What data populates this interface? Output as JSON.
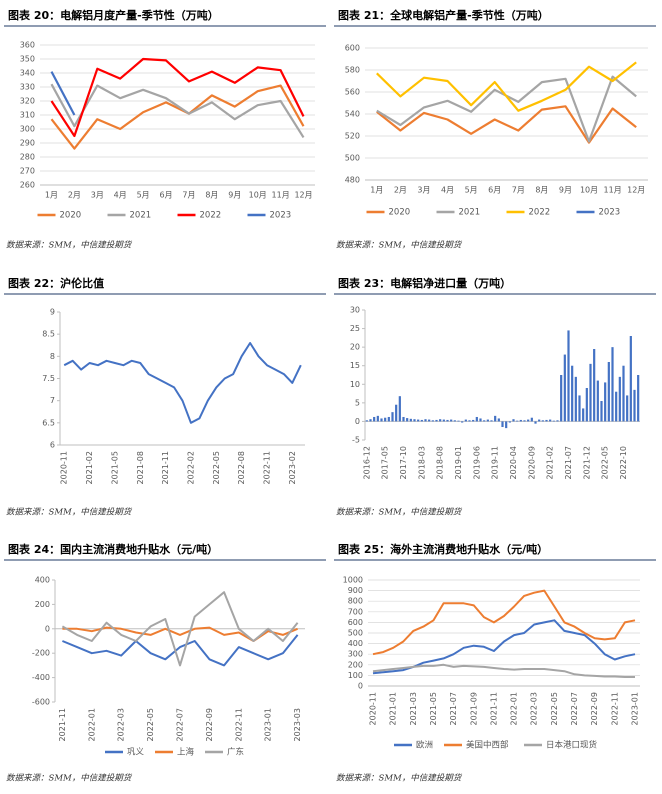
{
  "chart_data": [
    {
      "type": "line",
      "title": "图表 20：电解铝月度产量-季节性（万吨）",
      "source": "数据来源：SMM，中信建投期货",
      "categories": [
        "1月",
        "2月",
        "3月",
        "4月",
        "5月",
        "6月",
        "7月",
        "8月",
        "9月",
        "10月",
        "11月",
        "12月"
      ],
      "series": [
        {
          "name": "2020",
          "color": "#ed7d31",
          "values": [
            307,
            286,
            307,
            300,
            312,
            319,
            311,
            324,
            316,
            327,
            331,
            302
          ]
        },
        {
          "name": "2021",
          "color": "#a5a5a5",
          "values": [
            332,
            302,
            331,
            322,
            328,
            322,
            311,
            319,
            307,
            317,
            320,
            294
          ]
        },
        {
          "name": "2022",
          "color": "#ff0000",
          "values": [
            320,
            295,
            343,
            336,
            350,
            349,
            334,
            341,
            333,
            344,
            342,
            309
          ]
        },
        {
          "name": "2023",
          "color": "#4472c4",
          "values": [
            341,
            310,
            null,
            null,
            null,
            null,
            null,
            null,
            null,
            null,
            null,
            null
          ]
        }
      ],
      "ylim": [
        260,
        360
      ],
      "yticks": [
        260,
        270,
        280,
        290,
        300,
        310,
        320,
        330,
        340,
        350,
        360
      ],
      "grid": true
    },
    {
      "type": "line",
      "title": "图表 21：全球电解铝产量-季节性（万吨）",
      "source": "数据来源：SMM，中信建投期货",
      "categories": [
        "1月",
        "2月",
        "3月",
        "4月",
        "5月",
        "6月",
        "7月",
        "8月",
        "9月",
        "10月",
        "11月",
        "12月"
      ],
      "series": [
        {
          "name": "2020",
          "color": "#ed7d31",
          "values": [
            542,
            525,
            541,
            535,
            522,
            535,
            525,
            544,
            547,
            514,
            545,
            528
          ]
        },
        {
          "name": "2021",
          "color": "#a5a5a5",
          "values": [
            543,
            530,
            546,
            552,
            542,
            562,
            551,
            569,
            572,
            515,
            574,
            556
          ]
        },
        {
          "name": "2022",
          "color": "#ffc000",
          "values": [
            577,
            556,
            573,
            570,
            548,
            569,
            543,
            552,
            562,
            583,
            570,
            587
          ]
        },
        {
          "name": "2023",
          "color": "#4472c4",
          "values": [
            null,
            null,
            null,
            null,
            null,
            null,
            null,
            null,
            null,
            null,
            null,
            null
          ]
        }
      ],
      "ylim": [
        480,
        600
      ],
      "yticks": [
        480,
        500,
        520,
        540,
        560,
        580,
        600
      ],
      "grid": true
    },
    {
      "type": "line",
      "title": "图表 22：沪伦比值",
      "source": "数据来源：SMM，中信建投期货",
      "categories": [
        "2020-11",
        null,
        null,
        "2021-02",
        null,
        null,
        "2021-05",
        null,
        null,
        "2021-08",
        null,
        null,
        "2021-11",
        null,
        null,
        "2022-02",
        null,
        null,
        "2022-05",
        null,
        null,
        "2022-08",
        null,
        null,
        "2022-11",
        null,
        null,
        "2023-02",
        null
      ],
      "values": [
        7.8,
        7.9,
        7.7,
        7.85,
        7.8,
        7.9,
        7.85,
        7.8,
        7.9,
        7.85,
        7.6,
        7.5,
        7.4,
        7.3,
        7.0,
        6.5,
        6.6,
        7.0,
        7.3,
        7.5,
        7.6,
        8.0,
        8.3,
        8.0,
        7.8,
        7.7,
        7.6,
        7.4,
        7.8
      ],
      "color": "#4472c4",
      "ylim": [
        6,
        9
      ],
      "yticks": [
        6,
        6.5,
        7,
        7.5,
        8,
        8.5,
        9
      ],
      "grid": false
    },
    {
      "type": "bar",
      "title": "图表 23：电解铝净进口量（万吨）",
      "source": "数据来源：SMM，中信建投期货",
      "categories": [
        "2016-12",
        null,
        null,
        null,
        null,
        "2017-05",
        null,
        null,
        null,
        null,
        "2017-10",
        null,
        null,
        null,
        null,
        "2018-03",
        null,
        null,
        null,
        null,
        "2018-08",
        null,
        null,
        null,
        null,
        "2019-01",
        null,
        null,
        null,
        null,
        "2019-06",
        null,
        null,
        null,
        null,
        "2019-11",
        null,
        null,
        null,
        null,
        "2020-04",
        null,
        null,
        null,
        null,
        "2020-09",
        null,
        null,
        null,
        null,
        "2021-02",
        null,
        null,
        null,
        null,
        "2021-07",
        null,
        null,
        null,
        null,
        "2021-12",
        null,
        null,
        null,
        null,
        "2022-05",
        null,
        null,
        null,
        null,
        "2022-10",
        null,
        null,
        null,
        null
      ],
      "values": [
        0.3,
        0.6,
        1.2,
        1.5,
        0.8,
        1.0,
        1.2,
        2.5,
        4.5,
        6.8,
        1.2,
        0.9,
        0.7,
        0.6,
        0.5,
        0.4,
        0.6,
        0.5,
        0.3,
        0.4,
        0.6,
        0.5,
        0.4,
        0.5,
        0.3,
        0.2,
        -0.3,
        0.5,
        0.3,
        0.4,
        1.2,
        0.8,
        0.3,
        0.5,
        0.3,
        1.5,
        0.8,
        -1.5,
        -1.8,
        -0.3,
        0.6,
        0.2,
        0.4,
        0.3,
        0.5,
        1.0,
        -0.6,
        0.5,
        0.3,
        0.4,
        0.5,
        0.2,
        0.3,
        12.5,
        18,
        24.5,
        15,
        12,
        7,
        3.5,
        9,
        15.5,
        19.5,
        11,
        5.5,
        10.5,
        16,
        20,
        8,
        12,
        15,
        7,
        23,
        8.5,
        12.5
      ],
      "color": "#4472c4",
      "ylim": [
        -5,
        30
      ],
      "yticks": [
        -5,
        0,
        5,
        10,
        15,
        20,
        25,
        30
      ],
      "grid": false
    },
    {
      "type": "line",
      "title": "图表 24：国内主流消费地升贴水（元/吨）",
      "source": "数据来源：SMM，中信建投期货",
      "categories": [
        "2021-11",
        null,
        "2022-01",
        null,
        "2022-03",
        null,
        "2022-05",
        null,
        "2022-07",
        null,
        "2022-09",
        null,
        "2022-11",
        null,
        "2023-01",
        null,
        "2023-03"
      ],
      "series": [
        {
          "name": "巩义",
          "color": "#4472c4",
          "values": [
            -100,
            -150,
            -200,
            -180,
            -220,
            -100,
            -200,
            -250,
            -150,
            -100,
            -250,
            -300,
            -150,
            -200,
            -250,
            -200,
            -50
          ]
        },
        {
          "name": "上海",
          "color": "#ed7d31",
          "values": [
            0,
            0,
            -20,
            10,
            0,
            -30,
            -50,
            0,
            -50,
            0,
            10,
            -50,
            -30,
            -100,
            -20,
            -50,
            0
          ]
        },
        {
          "name": "广东",
          "color": "#a5a5a5",
          "values": [
            20,
            -50,
            -100,
            50,
            -50,
            -100,
            20,
            80,
            -300,
            100,
            200,
            300,
            0,
            -100,
            0,
            -100,
            50
          ]
        }
      ],
      "ylim": [
        -600,
        400
      ],
      "yticks": [
        -600,
        -400,
        -200,
        0,
        200,
        400
      ],
      "grid": false
    },
    {
      "type": "line",
      "title": "图表 25：海外主流消费地升贴水（元/吨）",
      "source": "数据来源：SMM，中信建投期货",
      "categories": [
        "2020-11",
        null,
        "2021-01",
        null,
        "2021-03",
        null,
        "2021-05",
        null,
        "2021-07",
        null,
        "2021-09",
        null,
        "2021-11",
        null,
        "2022-01",
        null,
        "2022-03",
        null,
        "2022-05",
        null,
        "2022-07",
        null,
        "2022-09",
        null,
        "2022-11",
        null,
        "2023-01"
      ],
      "series": [
        {
          "name": "欧洲",
          "color": "#4472c4",
          "values": [
            120,
            130,
            140,
            150,
            180,
            220,
            240,
            260,
            300,
            360,
            380,
            370,
            330,
            420,
            480,
            500,
            580,
            600,
            620,
            520,
            500,
            480,
            400,
            300,
            250,
            280,
            300
          ]
        },
        {
          "name": "美国中西部",
          "color": "#ed7d31",
          "values": [
            300,
            320,
            360,
            420,
            520,
            560,
            620,
            780,
            780,
            780,
            760,
            650,
            600,
            660,
            750,
            850,
            880,
            900,
            750,
            600,
            560,
            500,
            450,
            440,
            450,
            600,
            620
          ]
        },
        {
          "name": "日本港口现货",
          "color": "#a5a5a5",
          "values": [
            140,
            150,
            160,
            170,
            180,
            190,
            190,
            200,
            180,
            190,
            185,
            180,
            170,
            160,
            155,
            160,
            160,
            160,
            150,
            140,
            110,
            100,
            95,
            90,
            90,
            85,
            85
          ]
        }
      ],
      "ylim": [
        0,
        1000
      ],
      "yticks": [
        0,
        100,
        200,
        300,
        400,
        500,
        600,
        700,
        800,
        900,
        1000
      ],
      "grid": true
    }
  ]
}
